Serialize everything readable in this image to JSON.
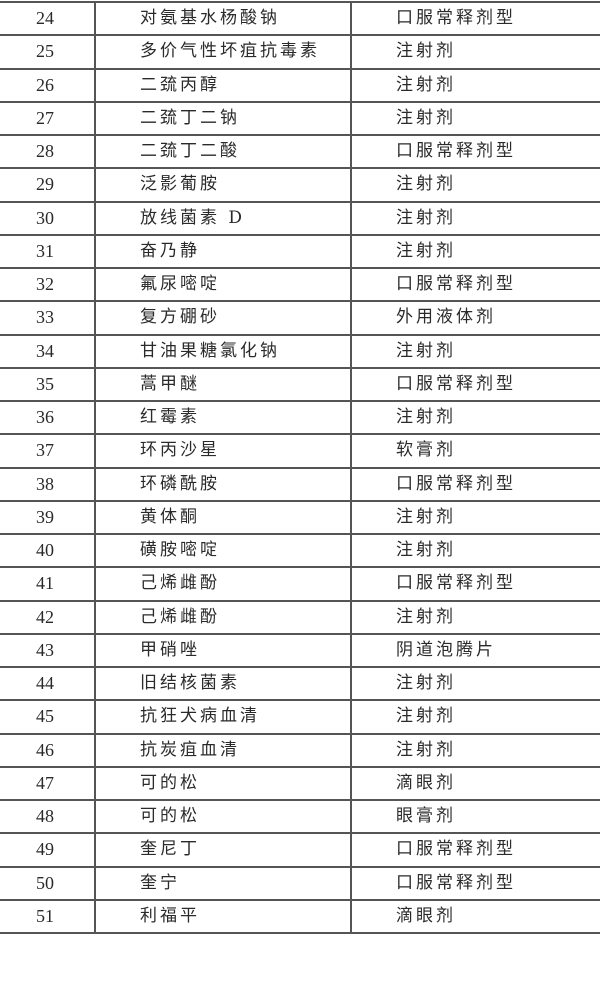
{
  "table": {
    "rows": [
      {
        "no": "24",
        "name": "对氨基水杨酸钠",
        "form": "口服常释剂型"
      },
      {
        "no": "25",
        "name": "多价气性坏疽抗毒素",
        "form": "注射剂"
      },
      {
        "no": "26",
        "name": "二巯丙醇",
        "form": "注射剂"
      },
      {
        "no": "27",
        "name": "二巯丁二钠",
        "form": "注射剂"
      },
      {
        "no": "28",
        "name": "二巯丁二酸",
        "form": "口服常释剂型"
      },
      {
        "no": "29",
        "name": "泛影葡胺",
        "form": "注射剂"
      },
      {
        "no": "30",
        "name": "放线菌素 D",
        "form": "注射剂"
      },
      {
        "no": "31",
        "name": "奋乃静",
        "form": "注射剂"
      },
      {
        "no": "32",
        "name": "氟尿嘧啶",
        "form": "口服常释剂型"
      },
      {
        "no": "33",
        "name": "复方硼砂",
        "form": "外用液体剂"
      },
      {
        "no": "34",
        "name": "甘油果糖氯化钠",
        "form": "注射剂"
      },
      {
        "no": "35",
        "name": "蒿甲醚",
        "form": "口服常释剂型"
      },
      {
        "no": "36",
        "name": "红霉素",
        "form": "注射剂"
      },
      {
        "no": "37",
        "name": "环丙沙星",
        "form": "软膏剂"
      },
      {
        "no": "38",
        "name": "环磷酰胺",
        "form": "口服常释剂型"
      },
      {
        "no": "39",
        "name": "黄体酮",
        "form": "注射剂"
      },
      {
        "no": "40",
        "name": "磺胺嘧啶",
        "form": "注射剂"
      },
      {
        "no": "41",
        "name": "己烯雌酚",
        "form": "口服常释剂型"
      },
      {
        "no": "42",
        "name": "己烯雌酚",
        "form": "注射剂"
      },
      {
        "no": "43",
        "name": "甲硝唑",
        "form": "阴道泡腾片"
      },
      {
        "no": "44",
        "name": "旧结核菌素",
        "form": "注射剂"
      },
      {
        "no": "45",
        "name": "抗狂犬病血清",
        "form": "注射剂"
      },
      {
        "no": "46",
        "name": "抗炭疽血清",
        "form": "注射剂"
      },
      {
        "no": "47",
        "name": "可的松",
        "form": "滴眼剂"
      },
      {
        "no": "48",
        "name": "可的松",
        "form": "眼膏剂"
      },
      {
        "no": "49",
        "name": "奎尼丁",
        "form": "口服常释剂型"
      },
      {
        "no": "50",
        "name": "奎宁",
        "form": "口服常释剂型"
      },
      {
        "no": "51",
        "name": "利福平",
        "form": "滴眼剂"
      }
    ]
  }
}
